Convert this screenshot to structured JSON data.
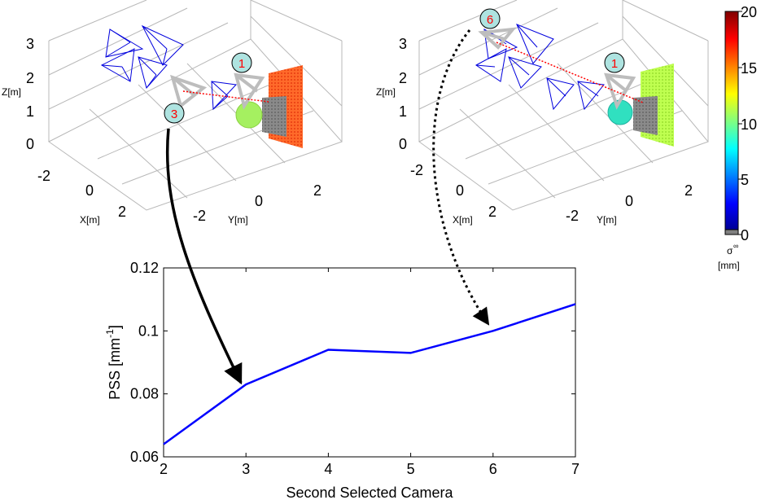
{
  "figure": {
    "colorbar": {
      "ticks": [
        "20",
        "15",
        "10",
        "5",
        "0"
      ],
      "label_main": "σ",
      "label_sup": "∞",
      "label_unit": "[mm]",
      "colors": [
        "#00008f",
        "#0000ff",
        "#0080ff",
        "#00ffff",
        "#80ff80",
        "#ffff00",
        "#ff8000",
        "#ff0000",
        "#800000"
      ],
      "zero_color": "#808080"
    },
    "scene_left": {
      "zlabel": "Z[m]",
      "xlabel": "X[m]",
      "ylabel": "Y[m]",
      "z_ticks": [
        "3",
        "2",
        "1",
        "0"
      ],
      "x_ticks": [
        "-2",
        "0",
        "2"
      ],
      "y_ticks": [
        "-2",
        "0",
        "2"
      ],
      "marker_selected": "3",
      "marker_first": "1"
    },
    "scene_right": {
      "zlabel": "Z[m]",
      "xlabel": "X[m]",
      "ylabel": "Y[m]",
      "z_ticks": [
        "3",
        "2",
        "1",
        "0"
      ],
      "x_ticks": [
        "-2",
        "0",
        "2"
      ],
      "y_ticks": [
        "-2",
        "0",
        "2"
      ],
      "marker_selected": "6",
      "marker_first": "1"
    }
  },
  "chart_data": {
    "type": "line",
    "xlabel": "Second Selected Camera",
    "ylabel_main": "PSS [mm",
    "ylabel_sup": "-1",
    "ylabel_close": "]",
    "xlim": [
      2,
      7
    ],
    "ylim": [
      0.06,
      0.12
    ],
    "x_ticks": [
      "2",
      "3",
      "4",
      "5",
      "6",
      "7"
    ],
    "y_ticks": [
      "0.06",
      "0.08",
      "0.1",
      "0.12"
    ],
    "line_color": "#0000ff",
    "series": [
      {
        "x": [
          2,
          3,
          4,
          5,
          6,
          7
        ],
        "y": [
          0.064,
          0.083,
          0.094,
          0.093,
          0.1,
          0.1085
        ]
      }
    ]
  }
}
